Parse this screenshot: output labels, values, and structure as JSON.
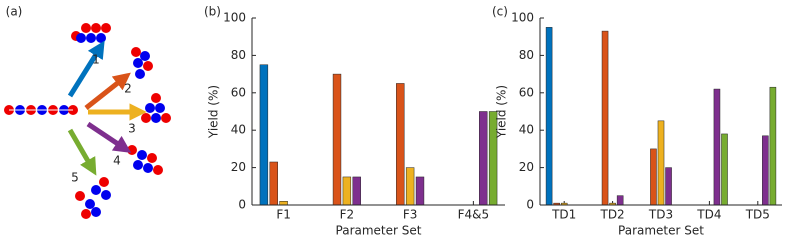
{
  "diagram": {
    "label": "(a)",
    "arrows": [
      {
        "label": "1",
        "color": "#0072BD"
      },
      {
        "label": "2",
        "color": "#D95319"
      },
      {
        "label": "3",
        "color": "#EDB120"
      },
      {
        "label": "4",
        "color": "#7E2F8E"
      },
      {
        "label": "5",
        "color": "#77AC30"
      }
    ]
  },
  "chart_data": [
    {
      "type": "bar",
      "panel_label": "(b)",
      "x_label": "Parameter Set",
      "y_label": "Yield (%)",
      "categories": [
        "F1",
        "F2",
        "F3",
        "F4&5"
      ],
      "series": [
        {
          "color": "#0072BD",
          "values": [
            75,
            0,
            0,
            0
          ]
        },
        {
          "color": "#D95319",
          "values": [
            23,
            70,
            65,
            0
          ]
        },
        {
          "color": "#EDB120",
          "values": [
            2,
            15,
            20,
            0
          ]
        },
        {
          "color": "#7E2F8E",
          "values": [
            0,
            15,
            15,
            50
          ]
        },
        {
          "color": "#77AC30",
          "values": [
            0,
            0,
            0,
            50
          ]
        }
      ],
      "ylim": [
        0,
        100
      ],
      "yticks": [
        0,
        20,
        40,
        60,
        80,
        100
      ]
    },
    {
      "type": "bar",
      "panel_label": "(c)",
      "x_label": "Parameter Set",
      "y_label": "Yield (%)",
      "categories": [
        "TD1",
        "TD2",
        "TD3",
        "TD4",
        "TD5"
      ],
      "series": [
        {
          "color": "#0072BD",
          "values": [
            95,
            0,
            0,
            0,
            0
          ]
        },
        {
          "color": "#D95319",
          "values": [
            1,
            93,
            30,
            0,
            0
          ]
        },
        {
          "color": "#EDB120",
          "values": [
            1,
            1,
            45,
            0,
            0
          ]
        },
        {
          "color": "#7E2F8E",
          "values": [
            0,
            5,
            20,
            62,
            37
          ]
        },
        {
          "color": "#77AC30",
          "values": [
            0,
            0,
            0,
            38,
            63
          ]
        }
      ],
      "ylim": [
        0,
        100
      ],
      "yticks": [
        0,
        20,
        40,
        60,
        80,
        100
      ]
    }
  ]
}
